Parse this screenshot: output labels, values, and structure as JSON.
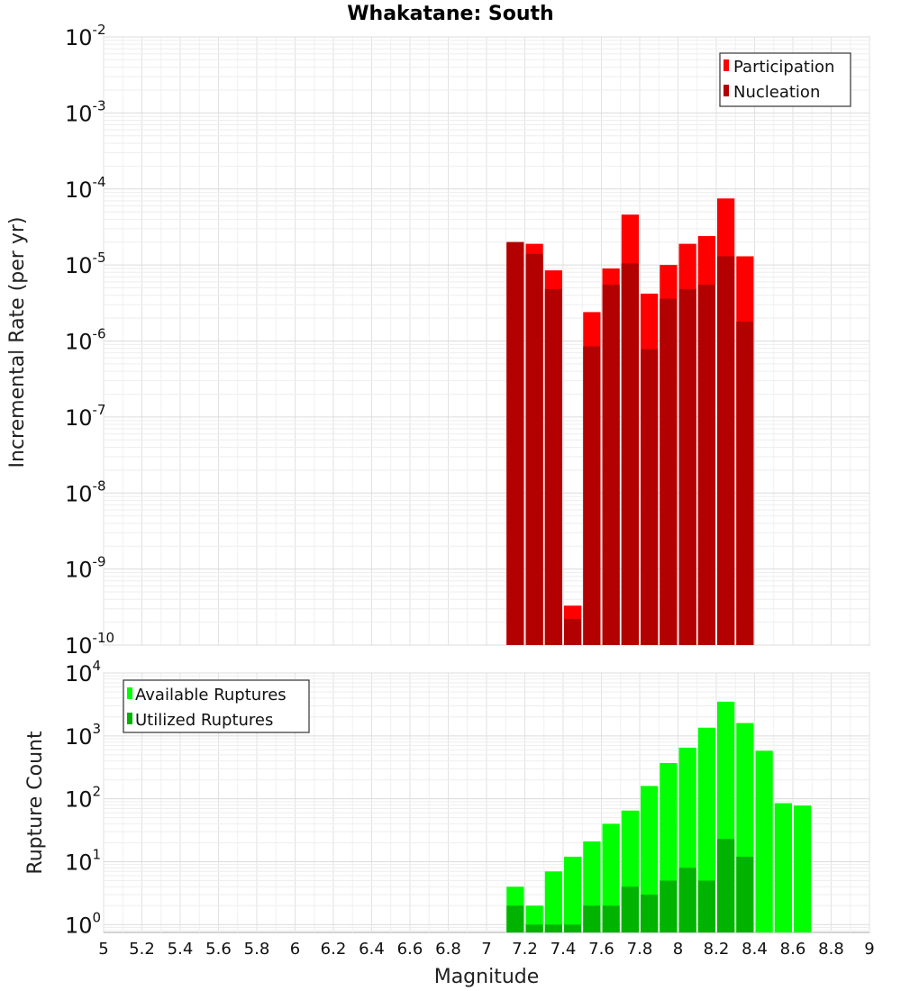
{
  "chart_data": [
    {
      "type": "bar",
      "title": "Whakatane: South",
      "xlabel": "",
      "ylabel": "Incremental Rate (per yr)",
      "yscale": "log",
      "ylim": [
        1e-10,
        0.01
      ],
      "xlim": [
        5,
        9
      ],
      "bin_width": 0.1,
      "legend_position": "top-right",
      "x": [
        7.15,
        7.25,
        7.35,
        7.45,
        7.55,
        7.65,
        7.75,
        7.85,
        7.95,
        8.05,
        8.15,
        8.25,
        8.35
      ],
      "series": [
        {
          "name": "Participation",
          "color": "#ff0000",
          "values": [
            2e-05,
            1.9e-05,
            8.5e-06,
            3.3e-10,
            2.4e-06,
            9e-06,
            4.6e-05,
            4.2e-06,
            1e-05,
            1.9e-05,
            2.4e-05,
            7.5e-05,
            1.3e-05
          ]
        },
        {
          "name": "Nucleation",
          "color": "#b30000",
          "values": [
            2e-05,
            1.4e-05,
            4.8e-06,
            2.2e-10,
            8.5e-07,
            5.5e-06,
            1.05e-05,
            7.8e-07,
            3.6e-06,
            4.8e-06,
            5.5e-06,
            1.3e-05,
            1.8e-06
          ]
        }
      ],
      "yticks": [
        {
          "base": "10",
          "exp": "-2",
          "value": 0.01
        },
        {
          "base": "10",
          "exp": "-3",
          "value": 0.001
        },
        {
          "base": "10",
          "exp": "-4",
          "value": 0.0001
        },
        {
          "base": "10",
          "exp": "-5",
          "value": 1e-05
        },
        {
          "base": "10",
          "exp": "-6",
          "value": 1e-06
        },
        {
          "base": "10",
          "exp": "-7",
          "value": 1e-07
        },
        {
          "base": "10",
          "exp": "-8",
          "value": 1e-08
        },
        {
          "base": "10",
          "exp": "-9",
          "value": 1e-09
        },
        {
          "base": "10",
          "exp": "-10",
          "value": 1e-10
        }
      ]
    },
    {
      "type": "bar",
      "title": "",
      "xlabel": "Magnitude",
      "ylabel": "Rupture Count",
      "yscale": "log",
      "ylim": [
        0.75,
        10000
      ],
      "xlim": [
        5,
        9
      ],
      "bin_width": 0.1,
      "legend_position": "top-left",
      "x": [
        7.15,
        7.25,
        7.35,
        7.45,
        7.55,
        7.65,
        7.75,
        7.85,
        7.95,
        8.05,
        8.15,
        8.25,
        8.35,
        8.45,
        8.55,
        8.65
      ],
      "series": [
        {
          "name": "Available Ruptures",
          "color": "#00ff00",
          "values": [
            4,
            2,
            7,
            12,
            21,
            40,
            65,
            160,
            370,
            650,
            1350,
            3500,
            1600,
            580,
            85,
            78
          ]
        },
        {
          "name": "Utilized Ruptures",
          "color": "#00b300",
          "values": [
            2,
            1,
            1,
            1,
            2,
            2,
            4,
            3,
            5,
            8,
            5,
            23,
            12,
            null,
            null,
            null
          ]
        }
      ],
      "yticks": [
        {
          "base": "10",
          "exp": "4",
          "value": 10000
        },
        {
          "base": "10",
          "exp": "3",
          "value": 1000
        },
        {
          "base": "10",
          "exp": "2",
          "value": 100
        },
        {
          "base": "10",
          "exp": "1",
          "value": 10
        },
        {
          "base": "10",
          "exp": "0",
          "value": 1
        }
      ],
      "xticks": [
        "5",
        "5.2",
        "5.4",
        "5.6",
        "5.8",
        "6",
        "6.2",
        "6.4",
        "6.6",
        "6.8",
        "7",
        "7.2",
        "7.4",
        "7.6",
        "7.8",
        "8",
        "8.2",
        "8.4",
        "8.6",
        "8.8",
        "9"
      ]
    }
  ]
}
